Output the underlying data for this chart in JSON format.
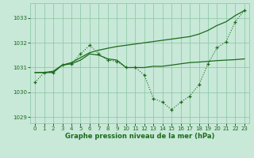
{
  "x": [
    0,
    1,
    2,
    3,
    4,
    5,
    6,
    7,
    8,
    9,
    10,
    11,
    12,
    13,
    14,
    15,
    16,
    17,
    18,
    19,
    20,
    21,
    22,
    23
  ],
  "line_dotted": [
    1030.4,
    1030.8,
    1030.8,
    1031.1,
    1031.15,
    1031.55,
    1031.9,
    1031.55,
    1031.3,
    1031.25,
    1031.0,
    1031.0,
    1030.7,
    1029.75,
    1029.6,
    1029.3,
    1029.6,
    1029.85,
    1030.3,
    1031.15,
    1031.8,
    1032.05,
    1032.85,
    1033.3
  ],
  "line_solid_flat": [
    1030.8,
    1030.8,
    1030.8,
    1031.1,
    1031.15,
    1031.3,
    1031.55,
    1031.5,
    1031.35,
    1031.3,
    1031.0,
    1031.0,
    1031.0,
    1031.05,
    1031.05,
    1031.1,
    1031.15,
    1031.2,
    1031.22,
    1031.25,
    1031.28,
    1031.3,
    1031.32,
    1031.35
  ],
  "line_solid_rise": [
    1030.8,
    1030.8,
    1030.85,
    1031.1,
    1031.2,
    1031.4,
    1031.6,
    1031.7,
    1031.78,
    1031.85,
    1031.9,
    1031.95,
    1032.0,
    1032.05,
    1032.1,
    1032.15,
    1032.2,
    1032.25,
    1032.35,
    1032.5,
    1032.7,
    1032.85,
    1033.1,
    1033.3
  ],
  "bg_color": "#c8e8d8",
  "grid_color": "#88c4a4",
  "line_color": "#1a6b1a",
  "xlabel": "Graphe pression niveau de la mer (hPa)",
  "ylim": [
    1028.75,
    1033.6
  ],
  "xlim": [
    -0.5,
    23.5
  ],
  "yticks": [
    1029,
    1030,
    1031,
    1032,
    1033
  ],
  "xticks": [
    0,
    1,
    2,
    3,
    4,
    5,
    6,
    7,
    8,
    9,
    10,
    11,
    12,
    13,
    14,
    15,
    16,
    17,
    18,
    19,
    20,
    21,
    22,
    23
  ]
}
